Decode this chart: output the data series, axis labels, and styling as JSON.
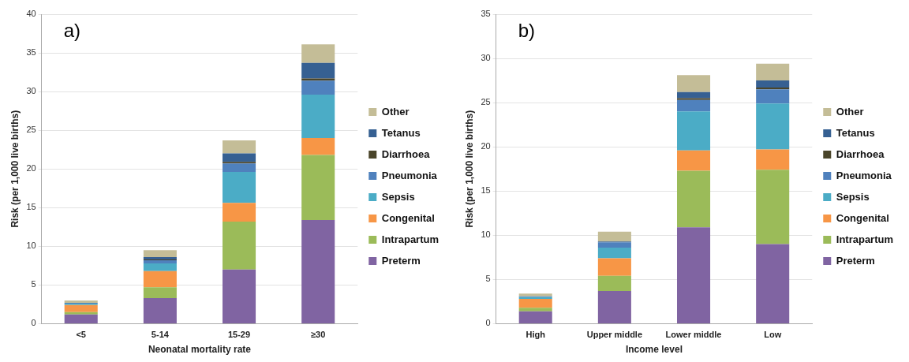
{
  "chart_data": [
    {
      "type": "bar",
      "stacked": true,
      "annotations": [
        "a)"
      ],
      "xlabel": "Neonatal mortality rate",
      "ylabel": "Risk (per 1,000 live births)",
      "categories": [
        "<5",
        "5-14",
        "15-29",
        "≥30"
      ],
      "ylim": [
        0,
        40
      ],
      "yticks": [
        0,
        5,
        10,
        15,
        20,
        25,
        30,
        35,
        40
      ],
      "grid": "y",
      "legend": "right",
      "series": [
        {
          "name": "Preterm",
          "color": "#8064a2",
          "values": [
            1.2,
            3.3,
            7.0,
            13.4
          ]
        },
        {
          "name": "Intrapartum",
          "color": "#9bbb59",
          "values": [
            0.3,
            1.4,
            6.2,
            8.4
          ]
        },
        {
          "name": "Congenital",
          "color": "#f79646",
          "values": [
            0.9,
            2.1,
            2.4,
            2.2
          ]
        },
        {
          "name": "Sepsis",
          "color": "#4bacc6",
          "values": [
            0.2,
            1.0,
            4.0,
            5.6
          ]
        },
        {
          "name": "Pneumonia",
          "color": "#4f81bd",
          "values": [
            0.1,
            0.4,
            1.1,
            1.8
          ]
        },
        {
          "name": "Diarrhoea",
          "color": "#4a452a",
          "values": [
            0,
            0.1,
            0.2,
            0.3
          ]
        },
        {
          "name": "Tetanus",
          "color": "#366092",
          "values": [
            0,
            0.3,
            1.1,
            2.0
          ]
        },
        {
          "name": "Other",
          "color": "#c4bd97",
          "values": [
            0.3,
            0.9,
            1.7,
            2.4
          ]
        }
      ]
    },
    {
      "type": "bar",
      "stacked": true,
      "annotations": [
        "b)"
      ],
      "xlabel": "Income level",
      "ylabel": "Risk (per 1,000 live births)",
      "categories": [
        "High",
        "Upper middle",
        "Lower middle",
        "Low"
      ],
      "ylim": [
        0,
        35
      ],
      "yticks": [
        0,
        5,
        10,
        15,
        20,
        25,
        30,
        35
      ],
      "grid": "y",
      "legend": "right",
      "series": [
        {
          "name": "Preterm",
          "color": "#8064a2",
          "values": [
            1.4,
            3.7,
            10.9,
            9.0
          ]
        },
        {
          "name": "Intrapartum",
          "color": "#9bbb59",
          "values": [
            0.4,
            1.7,
            6.4,
            8.4
          ]
        },
        {
          "name": "Congenital",
          "color": "#f79646",
          "values": [
            1.0,
            2.0,
            2.3,
            2.3
          ]
        },
        {
          "name": "Sepsis",
          "color": "#4bacc6",
          "values": [
            0.2,
            1.2,
            4.4,
            5.2
          ]
        },
        {
          "name": "Pneumonia",
          "color": "#4f81bd",
          "values": [
            0.1,
            0.6,
            1.3,
            1.6
          ]
        },
        {
          "name": "Diarrhoea",
          "color": "#4a452a",
          "values": [
            0,
            0,
            0.2,
            0.2
          ]
        },
        {
          "name": "Tetanus",
          "color": "#366092",
          "values": [
            0,
            0.1,
            0.7,
            0.8
          ]
        },
        {
          "name": "Other",
          "color": "#c4bd97",
          "values": [
            0.3,
            1.1,
            1.9,
            1.9
          ]
        }
      ]
    }
  ]
}
